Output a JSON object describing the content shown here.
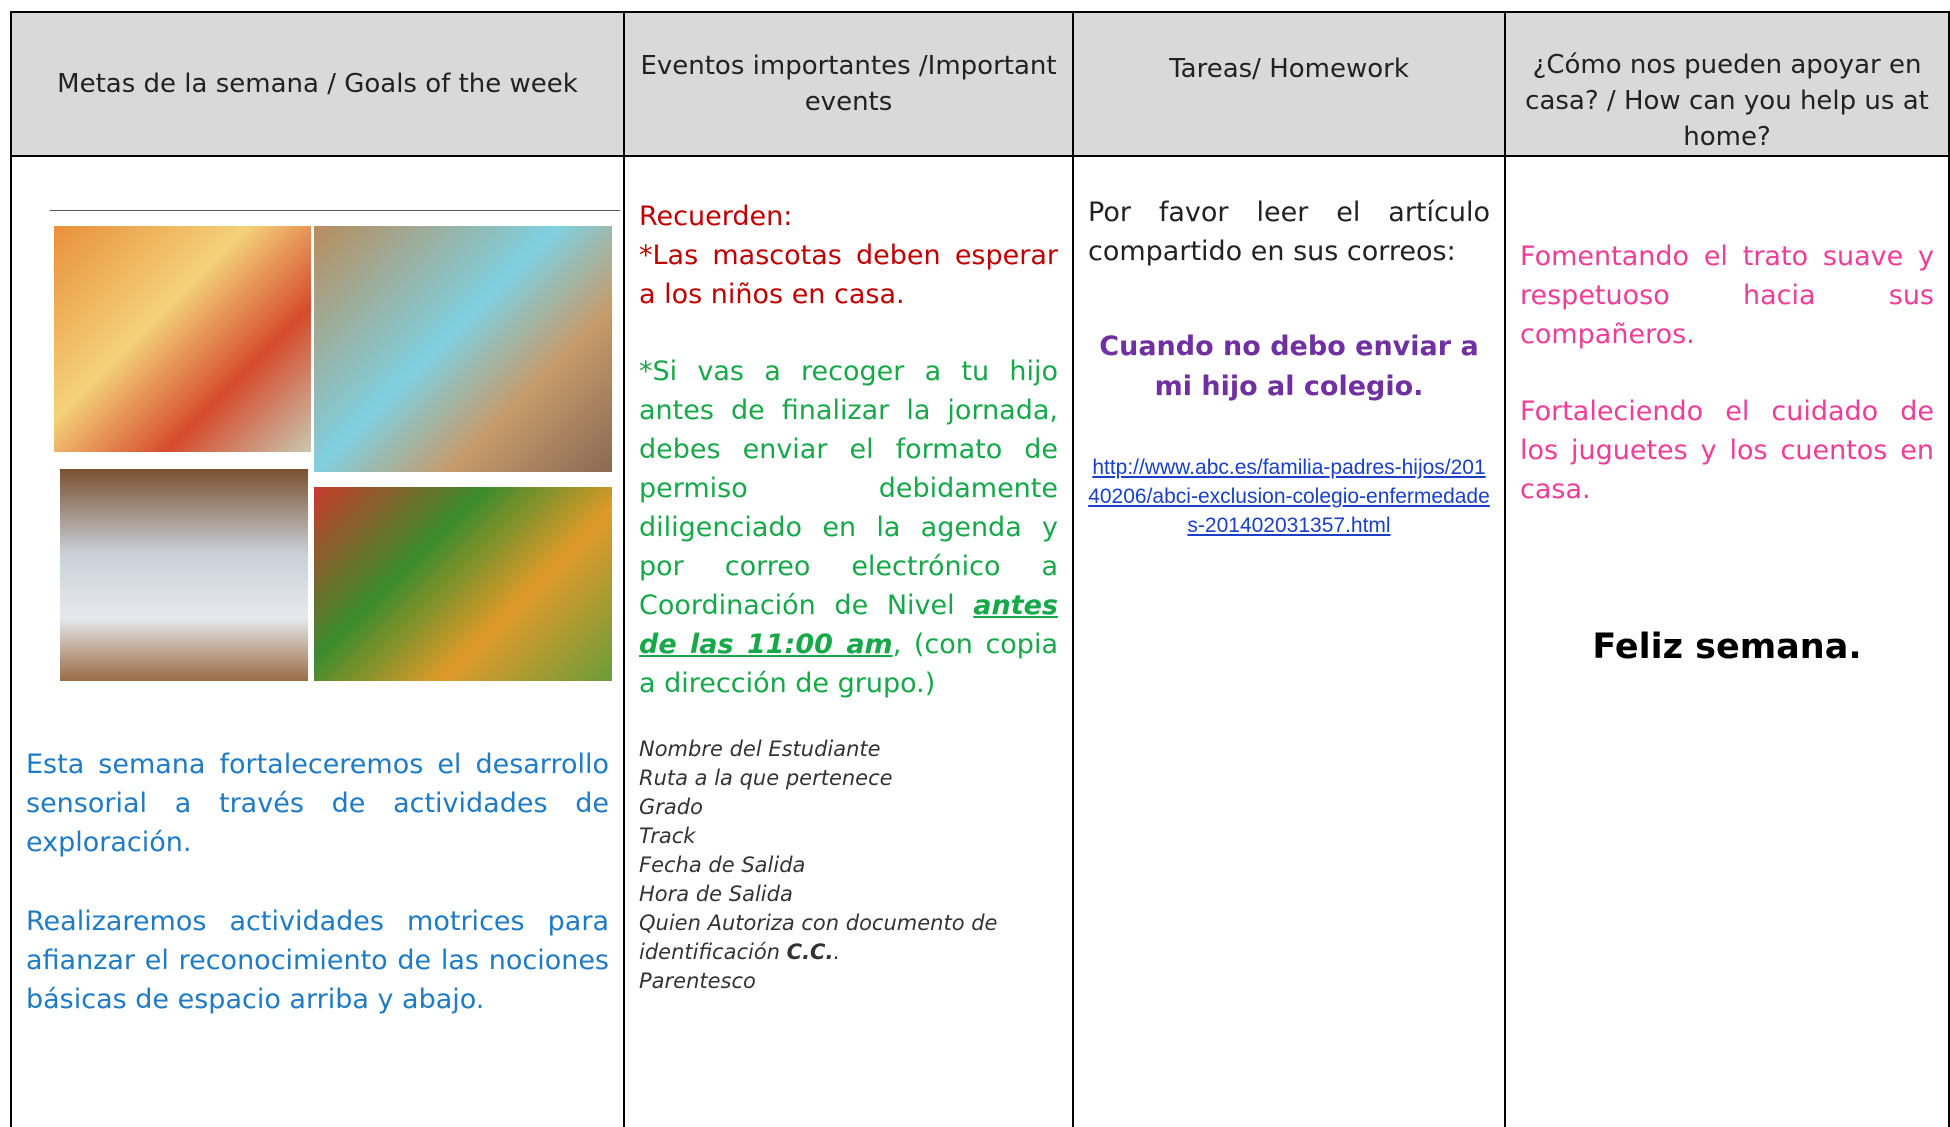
{
  "table": {
    "headers": [
      "Metas de la semana / Goals of the week",
      "Eventos importantes /Important events",
      "Tareas/ Homework",
      "¿Cómo nos pueden apoyar en casa? / How can you help us at home?"
    ],
    "goals": [
      "Esta semana fortaleceremos el desarrollo sensorial a través de actividades de exploración.",
      "Realizaremos actividades motrices para afianzar el reconocimiento de las nociones básicas de espacio arriba y abajo."
    ],
    "events": {
      "reminder_title": "Recuerden:",
      "reminder": "*Las mascotas deben esperar a los niños en casa.",
      "pickup_before": "*Si vas a recoger a tu hijo antes de finalizar la jornada, debes enviar el formato de permiso debidamente diligenciado en la agenda y por correo electrónico a Coordinación de Nivel",
      "pickup_deadline": "antes de las 11:00 am",
      "pickup_after": ", (con copia a dirección de grupo.)",
      "form_fields": [
        "Nombre del Estudiante",
        "Ruta a la que pertenece",
        "Grado",
        "Track",
        "Fecha de Salida",
        "Hora de Salida",
        "Quien Autoriza con documento de identificación",
        "Parentesco"
      ],
      "id_doc": "C.C.",
      "id_doc_suffix": "."
    },
    "homework": {
      "intro": "Por favor leer el artículo compartido en sus correos:",
      "article_title": "Cuando no debo enviar a mi hijo al colegio.",
      "link": "http://www.abc.es/familia-padres-hijos/20140206/abci-exclusion-colegio-enfermedades-201402031357.html"
    },
    "help": {
      "paragraphs": [
        "Fomentando el trato suave y respetuoso hacia sus compañeros.",
        "Fortaleciendo el cuidado de los juguetes y los cuentos en casa."
      ],
      "closing": "Feliz semana."
    }
  }
}
